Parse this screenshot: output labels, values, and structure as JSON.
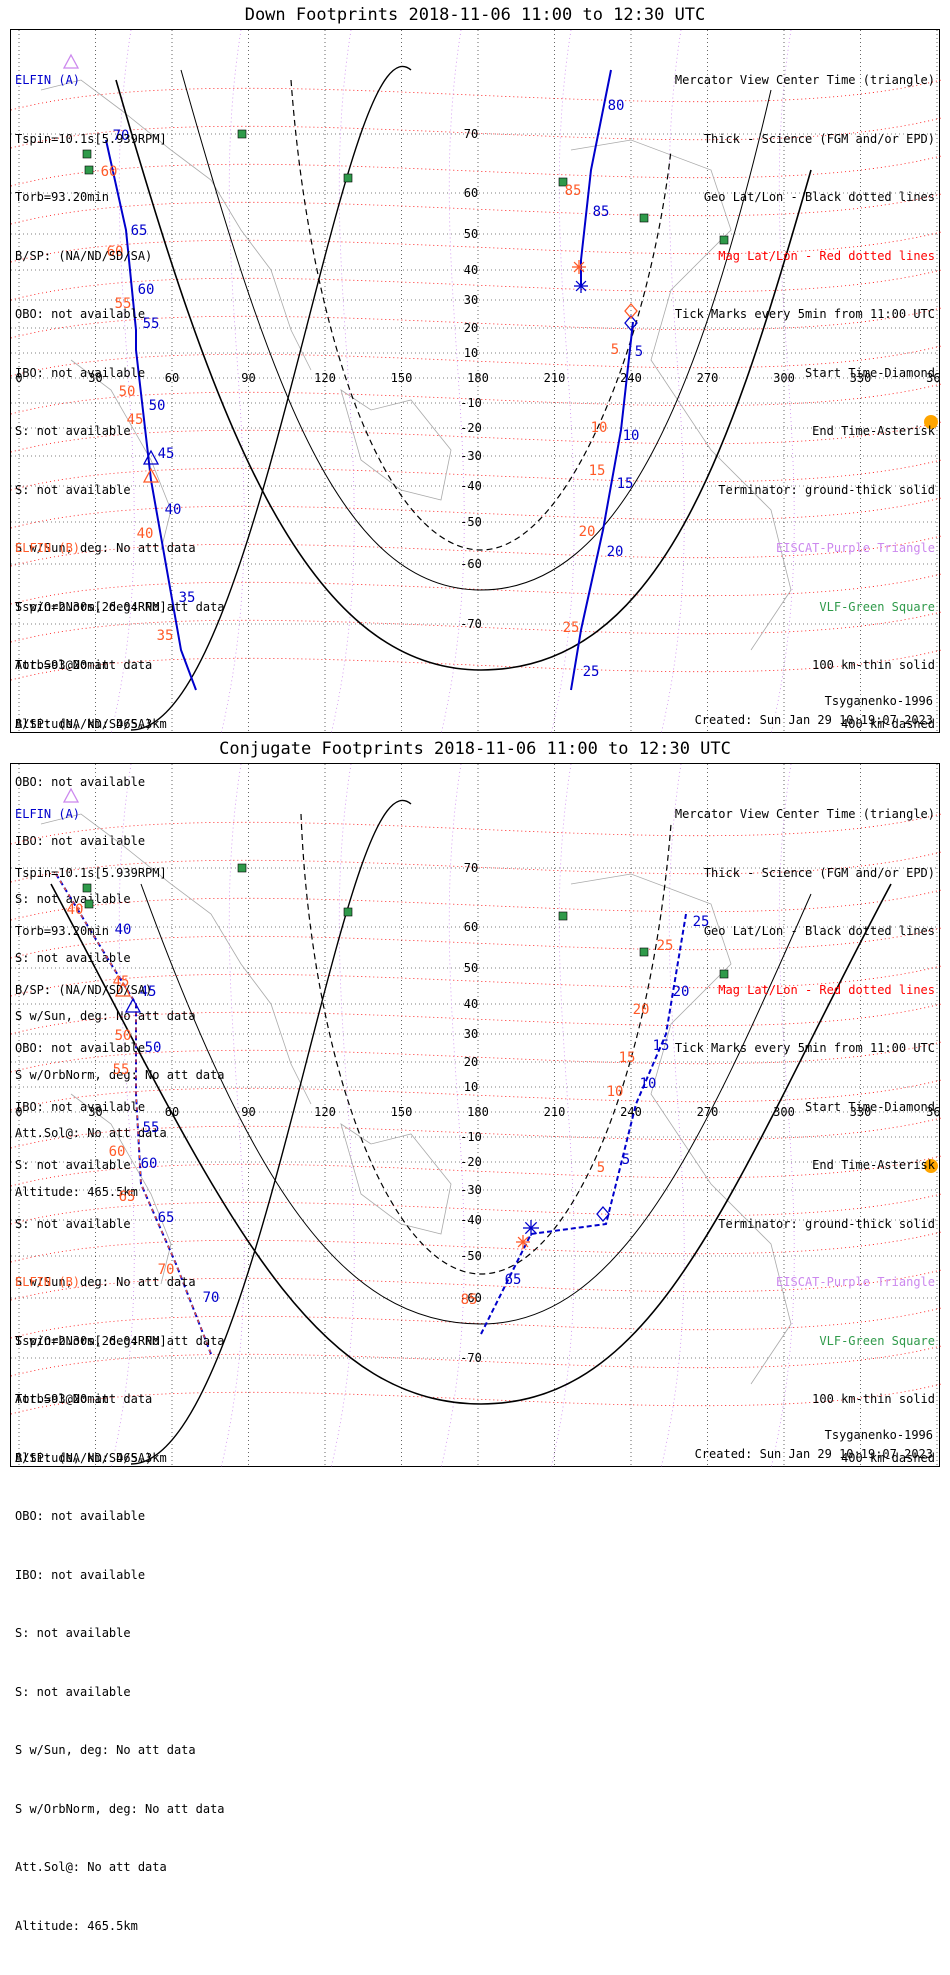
{
  "colors": {
    "elfin_a": "#0000cc",
    "elfin_b": "#ff5a28",
    "mag_grid": "#ff0000",
    "geo_grid": "#000000",
    "eiscat": "#cc88ee",
    "vlf": "#2f9a4a",
    "sun": "#ffa500"
  },
  "icons": {
    "sun": "sun-icon",
    "start": "diamond-marker",
    "end": "asterisk-marker",
    "center": "triangle-marker",
    "vlf": "green-square-marker",
    "eiscat": "purple-triangle-marker"
  },
  "panels": [
    {
      "title": "Down Footprints 2018-11-06 11:00 to 12:30 UTC",
      "elfin_a": {
        "header": "ELFIN (A)",
        "lines": [
          "Tspin=10.1s[5.939RPM]",
          "Torb=93.20min",
          "B/SP: (NA/ND/SD/SA)",
          "OBO: not available",
          "IBO: not available",
          "S: not available",
          "S: not available",
          "S w/Sun, deg: No att data",
          "S w/OrbNorm, deg: No att data",
          "Att.Sol@No att data",
          "Altitude, km: 465.3km"
        ]
      },
      "elfin_b": {
        "header": "ELFIN (B)",
        "lines": [
          "Tspin=2.30s[26.04RPM]",
          "Torb=93.20min",
          "B/SP: (NA/ND/SD/SA)",
          "OBO: not available",
          "IBO: not available",
          "S: not available",
          "S: not available",
          "S w/Sun, deg: No att data",
          "S w/OrbNorm, deg: No att data",
          "Att.Sol@: No att data",
          "Altitude: 465.5km"
        ]
      },
      "legend": [
        {
          "text": "Mercator View Center Time (triangle)",
          "color": "#000000"
        },
        {
          "text": "Thick - Science (FGM and/or EPD)",
          "color": "#000000"
        },
        {
          "text": "Geo Lat/Lon - Black dotted lines",
          "color": "#000000"
        },
        {
          "text": "Mag Lat/Lon - Red dotted lines",
          "color": "#ff0000"
        },
        {
          "text": "Tick Marks every 5min from 11:00 UTC",
          "color": "#000000"
        },
        {
          "text": "Start Time-Diamond",
          "color": "#000000"
        },
        {
          "text": "End Time-Asterisk",
          "color": "#000000"
        },
        {
          "text": "Terminator: ground-thick solid",
          "color": "#000000"
        },
        {
          "text": "EISCAT-Purple Triangle",
          "color": "#cc88ee"
        },
        {
          "text": "VLF-Green Square",
          "color": "#2f9a4a"
        },
        {
          "text": "100 km-thin solid",
          "color": "#000000"
        },
        {
          "text": "400 km-dashed",
          "color": "#000000"
        }
      ],
      "model": "Tsyganenko-1996",
      "created": "Created: Sun Jan 29 10:19:07 2023",
      "lon_labels": [
        "0",
        "30",
        "60",
        "90",
        "120",
        "150",
        "180",
        "210",
        "240",
        "270",
        "300",
        "330",
        "360"
      ],
      "lat_labels": [
        "70",
        "60",
        "50",
        "40",
        "30",
        "20",
        "10",
        "-10",
        "-20",
        "-30",
        "-40",
        "-50",
        "-60",
        "-70"
      ],
      "track_a_labels": [
        "70",
        "65",
        "60",
        "55",
        "50",
        "45",
        "40",
        "35",
        "80",
        "85",
        "5",
        "10",
        "15",
        "20",
        "25"
      ],
      "track_b_labels": [
        "60",
        "60",
        "55",
        "50",
        "45",
        "40",
        "35",
        "85",
        "5",
        "10",
        "15",
        "20",
        "25"
      ]
    },
    {
      "title": "Conjugate Footprints 2018-11-06 11:00 to 12:30 UTC",
      "elfin_a": {
        "header": "ELFIN (A)",
        "lines": [
          "Tspin=10.1s[5.939RPM]",
          "Torb=93.20min",
          "B/SP: (NA/ND/SD/SA)",
          "OBO: not available",
          "IBO: not available",
          "S: not available",
          "S: not available",
          "S w/Sun, deg: No att data",
          "S w/OrbNorm, deg: No att data",
          "Att.Sol@No att data",
          "Altitude, km: 465.3km"
        ]
      },
      "elfin_b": {
        "header": "ELFIN (B)",
        "lines": [
          "Tspin=2.30s[26.04RPM]",
          "Torb=93.20min",
          "B/SP: (NA/ND/SD/SA)",
          "OBO: not available",
          "IBO: not available",
          "S: not available",
          "S: not available",
          "S w/Sun, deg: No att data",
          "S w/OrbNorm, deg: No att data",
          "Att.Sol@: No att data",
          "Altitude: 465.5km"
        ]
      },
      "legend": [
        {
          "text": "Mercator View Center Time (triangle)",
          "color": "#000000"
        },
        {
          "text": "Thick - Science (FGM and/or EPD)",
          "color": "#000000"
        },
        {
          "text": "Geo Lat/Lon - Black dotted lines",
          "color": "#000000"
        },
        {
          "text": "Mag Lat/Lon - Red dotted lines",
          "color": "#ff0000"
        },
        {
          "text": "Tick Marks every 5min from 11:00 UTC",
          "color": "#000000"
        },
        {
          "text": "Start Time-Diamond",
          "color": "#000000"
        },
        {
          "text": "End Time-Asterisk",
          "color": "#000000"
        },
        {
          "text": "Terminator: ground-thick solid",
          "color": "#000000"
        },
        {
          "text": "EISCAT-Purple Triangle",
          "color": "#cc88ee"
        },
        {
          "text": "VLF-Green Square",
          "color": "#2f9a4a"
        },
        {
          "text": "100 km-thin solid",
          "color": "#000000"
        },
        {
          "text": "400 km-dashed",
          "color": "#000000"
        }
      ],
      "model": "Tsyganenko-1996",
      "created": "Created: Sun Jan 29 10:19:07 2023",
      "lon_labels": [
        "0",
        "30",
        "60",
        "90",
        "120",
        "150",
        "180",
        "210",
        "240",
        "270",
        "300",
        "330",
        "360"
      ],
      "lat_labels": [
        "70",
        "60",
        "50",
        "40",
        "30",
        "20",
        "10",
        "-10",
        "-20",
        "-30",
        "-40",
        "-50",
        "-60",
        "-70"
      ],
      "track_a_labels": [
        "40",
        "45",
        "50",
        "55",
        "60",
        "65",
        "70",
        "65",
        "5",
        "10",
        "15",
        "20",
        "25"
      ],
      "track_b_labels": [
        "40",
        "45",
        "50",
        "55",
        "60",
        "65",
        "70",
        "85",
        "5",
        "10",
        "15",
        "20",
        "25"
      ]
    }
  ]
}
